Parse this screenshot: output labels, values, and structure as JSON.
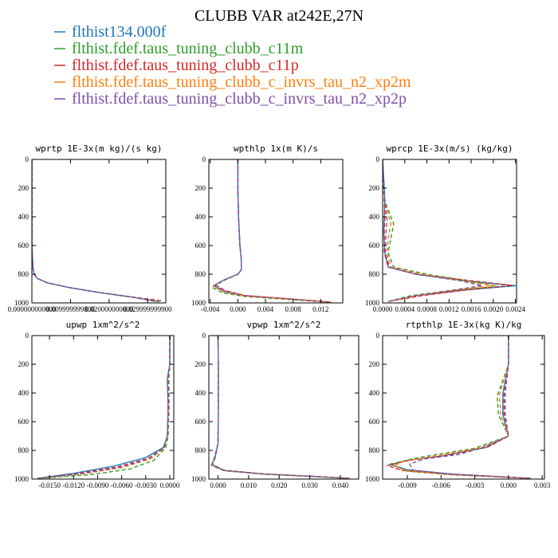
{
  "figure": {
    "title": "CLUBB VAR at242E,27N",
    "legend": [
      {
        "label": "flthist134.000f",
        "color": "#1f77b4"
      },
      {
        "label": "flthist.fdef.taus_tuning_clubb_c11m",
        "color": "#2ca02c"
      },
      {
        "label": "flthist.fdef.taus_tuning_clubb_c11p",
        "color": "#d62728"
      },
      {
        "label": "flthist.fdef.taus_tuning_clubb_c_invrs_tau_n2_xp2m",
        "color": "#ff7f0e"
      },
      {
        "label": "flthist.fdef.taus_tuning_clubb_c_invrs_tau_n2_xp2p",
        "color": "#7f4fa8"
      }
    ]
  },
  "chart_data": [
    {
      "type": "line",
      "title": "wprtp  1E-3x(m kg)/(s kg)",
      "xlim": [
        0,
        0.0347
      ],
      "ylim": [
        1000,
        0
      ],
      "xticks": [
        0,
        0.01,
        0.02,
        0.03
      ],
      "xtick_labels": [
        "0.000000000000",
        "0.009999999800",
        "0.020000000000",
        "0.029999999900"
      ],
      "yticks": [
        0,
        200,
        400,
        600,
        800,
        1000
      ],
      "ytick_labels": [
        "0",
        "200",
        "400",
        "600",
        "800",
        "1000"
      ],
      "series": [
        {
          "x": [
            0.0,
            0.0,
            0.0,
            0.0003,
            0.0006,
            0.0014,
            0.004,
            0.01,
            0.018,
            0.026,
            0.0327
          ],
          "y": [
            0,
            300,
            600,
            760,
            800,
            830,
            860,
            895,
            930,
            960,
            990
          ]
        },
        {
          "x": [
            0.0,
            0.0,
            0.0,
            0.0003,
            0.0006,
            0.0015,
            0.0042,
            0.0105,
            0.0185,
            0.0265,
            0.033
          ],
          "y": [
            0,
            300,
            600,
            760,
            800,
            832,
            862,
            897,
            932,
            962,
            992
          ]
        },
        {
          "x": [
            0.0,
            0.0,
            0.0,
            0.0003,
            0.0006,
            0.0013,
            0.0038,
            0.0098,
            0.0178,
            0.0258,
            0.0336
          ],
          "y": [
            0,
            300,
            600,
            760,
            800,
            828,
            858,
            893,
            928,
            958,
            985
          ]
        },
        {
          "x": [
            0.0,
            0.0,
            0.0,
            0.0003,
            0.0006,
            0.0015,
            0.0042,
            0.0102,
            0.0182,
            0.0262,
            0.0325
          ],
          "y": [
            0,
            300,
            600,
            760,
            800,
            831,
            861,
            896,
            931,
            961,
            993
          ]
        },
        {
          "x": [
            0.0,
            0.0,
            0.0,
            0.0003,
            0.0006,
            0.0014,
            0.0039,
            0.0099,
            0.0179,
            0.0259,
            0.0322
          ],
          "y": [
            0,
            300,
            600,
            760,
            800,
            829,
            859,
            894,
            929,
            959,
            988
          ]
        }
      ]
    },
    {
      "type": "line",
      "title": "wpthlp  1x(m K)/s",
      "xlim": [
        -0.0042,
        0.0152
      ],
      "ylim": [
        1000,
        0
      ],
      "xticks": [
        -0.004,
        0,
        0.004,
        0.008,
        0.012
      ],
      "xtick_labels": [
        "-0.004",
        "0.000",
        "0.004",
        "0.008",
        "0.012"
      ],
      "yticks": [
        0,
        200,
        400,
        600,
        800,
        1000
      ],
      "ytick_labels": [
        "0",
        "200",
        "400",
        "600",
        "800",
        "1000"
      ],
      "series": [
        {
          "x": [
            0.0,
            0.0,
            0.0001,
            0.0003,
            0.0005,
            0.0005,
            0.0,
            -0.002,
            -0.0035,
            -0.002,
            0.001,
            0.008,
            0.0135
          ],
          "y": [
            0,
            200,
            400,
            600,
            700,
            770,
            800,
            840,
            880,
            920,
            950,
            975,
            995
          ]
        },
        {
          "x": [
            0.0,
            0.0,
            0.0001,
            0.0003,
            0.0005,
            0.0005,
            0.0,
            -0.0023,
            -0.0038,
            -0.0022,
            0.001,
            0.008,
            0.0135
          ],
          "y": [
            0,
            200,
            400,
            600,
            700,
            770,
            800,
            845,
            890,
            930,
            955,
            978,
            996
          ]
        },
        {
          "x": [
            0.0,
            0.0,
            0.0001,
            0.0003,
            0.0005,
            0.0005,
            0.0,
            -0.0018,
            -0.0032,
            -0.0018,
            0.001,
            0.008,
            0.0135
          ],
          "y": [
            0,
            200,
            400,
            600,
            700,
            770,
            800,
            838,
            875,
            915,
            948,
            973,
            994
          ]
        },
        {
          "x": [
            0.0,
            0.0,
            0.0001,
            0.0003,
            0.0005,
            0.0005,
            0.0,
            -0.0021,
            -0.0036,
            -0.002,
            0.001,
            0.008,
            0.0135
          ],
          "y": [
            0,
            200,
            400,
            600,
            700,
            770,
            800,
            842,
            884,
            924,
            952,
            976,
            995
          ]
        },
        {
          "x": [
            0.0,
            0.0,
            0.0001,
            0.0003,
            0.0005,
            0.0005,
            0.0,
            -0.0019,
            -0.0034,
            -0.0019,
            0.001,
            0.008,
            0.0135
          ],
          "y": [
            0,
            200,
            400,
            600,
            700,
            770,
            800,
            840,
            878,
            918,
            950,
            974,
            994
          ]
        }
      ]
    },
    {
      "type": "line",
      "title": "wprcp  1E-3x(m/s) (kg/kg)",
      "xlim": [
        0,
        0.00242
      ],
      "ylim": [
        1000,
        0
      ],
      "xticks": [
        0,
        0.0004,
        0.0008,
        0.0012,
        0.0016,
        0.002,
        0.0024
      ],
      "xtick_labels": [
        "0.0000",
        "0.0004",
        "0.0008",
        "0.0012",
        "0.0016",
        "0.0020",
        "0.0024"
      ],
      "yticks": [
        0,
        200,
        400,
        600,
        800,
        1000
      ],
      "ytick_labels": [
        "0",
        "200",
        "400",
        "600",
        "800",
        "1000"
      ],
      "series": [
        {
          "x": [
            0.0,
            3e-05,
            4e-05,
            3e-05,
            2e-05,
            4e-05,
            0.0001,
            0.0006,
            0.0016,
            0.0024,
            0.0015,
            0.0006,
            0.0001
          ],
          "y": [
            0,
            200,
            300,
            400,
            500,
            650,
            750,
            800,
            850,
            880,
            910,
            950,
            990
          ]
        },
        {
          "x": [
            0.0,
            1e-05,
            5e-05,
            0.0002,
            0.00015,
            0.0001,
            0.0002,
            0.0008,
            0.0016,
            0.0021,
            0.0012,
            0.0005,
            0.0001
          ],
          "y": [
            0,
            200,
            300,
            450,
            550,
            650,
            750,
            800,
            850,
            885,
            915,
            950,
            990
          ]
        },
        {
          "x": [
            0.0,
            2e-05,
            3e-05,
            4e-05,
            3e-05,
            3e-05,
            0.0001,
            0.0006,
            0.0017,
            0.00235,
            0.0016,
            0.0007,
            0.0001
          ],
          "y": [
            0,
            200,
            300,
            400,
            500,
            650,
            750,
            800,
            850,
            878,
            905,
            950,
            990
          ]
        },
        {
          "x": [
            0.0,
            1e-05,
            4e-05,
            0.00015,
            0.0001,
            8e-05,
            0.00015,
            0.0007,
            0.0015,
            0.002,
            0.0013,
            0.0006,
            0.0001
          ],
          "y": [
            0,
            200,
            300,
            450,
            550,
            650,
            750,
            800,
            850,
            880,
            912,
            950,
            990
          ]
        },
        {
          "x": [
            0.0,
            2e-05,
            4e-05,
            8e-05,
            6e-05,
            5e-05,
            0.00012,
            0.0006,
            0.0014,
            0.0018,
            0.0012,
            0.0006,
            0.0001
          ],
          "y": [
            0,
            200,
            300,
            420,
            520,
            650,
            750,
            800,
            845,
            880,
            915,
            950,
            990
          ]
        }
      ]
    },
    {
      "type": "line",
      "title": "upwp  1xm^2/s^2",
      "xlim": [
        -0.0172,
        0.0005
      ],
      "ylim": [
        1000,
        0
      ],
      "xticks": [
        -0.015,
        -0.012,
        -0.009,
        -0.006,
        -0.003,
        0
      ],
      "xtick_labels": [
        "-0.0150",
        "-0.0120",
        "-0.0090",
        "-0.0060",
        "-0.0030",
        "0.0000"
      ],
      "yticks": [
        0,
        200,
        400,
        600,
        800,
        1000
      ],
      "ytick_labels": [
        "0",
        "200",
        "400",
        "600",
        "800",
        "1000"
      ],
      "series": [
        {
          "x": [
            0.0,
            0.0,
            -0.0003,
            -0.0002,
            -0.0003,
            -0.0008,
            -0.003,
            -0.007,
            -0.012,
            -0.0165
          ],
          "y": [
            0,
            200,
            300,
            500,
            700,
            780,
            850,
            910,
            960,
            995
          ]
        },
        {
          "x": [
            0.0,
            0.0,
            -0.0001,
            -0.0001,
            -0.0002,
            -0.0005,
            -0.002,
            -0.005,
            -0.01,
            -0.0165
          ],
          "y": [
            0,
            200,
            300,
            500,
            700,
            780,
            870,
            930,
            970,
            995
          ]
        },
        {
          "x": [
            0.0,
            0.0,
            -0.0002,
            -0.0002,
            -0.0003,
            -0.0007,
            -0.0027,
            -0.0065,
            -0.0115,
            -0.0165
          ],
          "y": [
            0,
            200,
            300,
            500,
            700,
            780,
            855,
            915,
            962,
            995
          ]
        },
        {
          "x": [
            0.0,
            0.0,
            -0.0001,
            -0.0001,
            -0.0003,
            -0.0006,
            -0.0024,
            -0.006,
            -0.011,
            -0.0165
          ],
          "y": [
            0,
            200,
            300,
            500,
            700,
            780,
            860,
            920,
            965,
            995
          ]
        },
        {
          "x": [
            0.0,
            0.0,
            -0.0002,
            -0.0001,
            -0.0003,
            -0.0007,
            -0.0026,
            -0.0062,
            -0.0112,
            -0.0165
          ],
          "y": [
            0,
            200,
            300,
            500,
            700,
            780,
            857,
            918,
            963,
            995
          ]
        }
      ]
    },
    {
      "type": "line",
      "title": "vpwp  1xm^2/s^2",
      "xlim": [
        -0.003,
        0.046
      ],
      "ylim": [
        1000,
        0
      ],
      "xticks": [
        0,
        0.01,
        0.02,
        0.03,
        0.04
      ],
      "xtick_labels": [
        "0.000",
        "0.010",
        "0.020",
        "0.030",
        "0.040"
      ],
      "yticks": [
        0,
        200,
        400,
        600,
        800,
        1000
      ],
      "ytick_labels": [
        "0",
        "200",
        "400",
        "600",
        "800",
        "1000"
      ],
      "series": [
        {
          "x": [
            0.0,
            0.0001,
            0.0001,
            0.0,
            -0.001,
            -0.002,
            0.002,
            0.015,
            0.03,
            0.043
          ],
          "y": [
            0,
            200,
            500,
            750,
            850,
            900,
            940,
            965,
            980,
            995
          ]
        },
        {
          "x": [
            0.0,
            0.0001,
            0.0001,
            0.0,
            -0.0012,
            -0.0022,
            0.002,
            0.015,
            0.03,
            0.043
          ],
          "y": [
            0,
            200,
            500,
            750,
            850,
            905,
            942,
            966,
            981,
            995
          ]
        },
        {
          "x": [
            0.0,
            0.0001,
            0.0001,
            0.0,
            -0.0009,
            -0.0019,
            0.002,
            0.015,
            0.03,
            0.043
          ],
          "y": [
            0,
            200,
            500,
            750,
            850,
            898,
            938,
            964,
            979,
            995
          ]
        },
        {
          "x": [
            0.0,
            0.0001,
            0.0001,
            0.0,
            -0.0011,
            -0.0021,
            0.002,
            0.015,
            0.03,
            0.043
          ],
          "y": [
            0,
            200,
            500,
            750,
            850,
            902,
            941,
            965,
            980,
            995
          ]
        },
        {
          "x": [
            0.0,
            0.0001,
            0.0001,
            0.0,
            -0.001,
            -0.002,
            0.002,
            0.015,
            0.03,
            0.043
          ],
          "y": [
            0,
            200,
            500,
            750,
            850,
            900,
            940,
            965,
            980,
            995
          ]
        }
      ]
    },
    {
      "type": "line",
      "title": "rtpthlp  1E-3x(kg K)/kg",
      "xlim": [
        -0.0112,
        0.0032
      ],
      "ylim": [
        1000,
        0
      ],
      "xticks": [
        -0.009,
        -0.006,
        -0.003,
        0,
        0.003
      ],
      "xtick_labels": [
        "-0.009",
        "-0.006",
        "-0.003",
        "0.000",
        "0.003"
      ],
      "yticks": [
        0,
        200,
        400,
        600,
        800,
        1000
      ],
      "ytick_labels": [
        "0",
        "200",
        "400",
        "600",
        "800",
        "1000"
      ],
      "series": [
        {
          "x": [
            0.0,
            0.0,
            -0.0005,
            -0.0005,
            0.0,
            -0.002,
            -0.006,
            -0.009,
            -0.0105,
            -0.009,
            -0.005,
            0.002
          ],
          "y": [
            0,
            200,
            400,
            550,
            700,
            780,
            840,
            870,
            900,
            935,
            965,
            995
          ]
        },
        {
          "x": [
            0.0,
            0.0,
            -0.001,
            -0.0009,
            0.0,
            -0.003,
            -0.008,
            -0.0105,
            -0.0098,
            -0.009,
            -0.005,
            0.002
          ],
          "y": [
            0,
            200,
            420,
            550,
            700,
            785,
            850,
            895,
            920,
            945,
            970,
            995
          ]
        },
        {
          "x": [
            0.0,
            0.0,
            -0.0003,
            -0.0003,
            0.0,
            -0.0018,
            -0.0055,
            -0.0085,
            -0.0108,
            -0.0095,
            -0.005,
            0.002
          ],
          "y": [
            0,
            200,
            400,
            550,
            700,
            775,
            835,
            865,
            905,
            940,
            968,
            995
          ]
        },
        {
          "x": [
            0.0,
            0.0,
            -0.0008,
            -0.0007,
            0.0,
            -0.0025,
            -0.007,
            -0.0095,
            -0.0102,
            -0.009,
            -0.005,
            0.002
          ],
          "y": [
            0,
            200,
            410,
            550,
            700,
            782,
            845,
            880,
            910,
            942,
            969,
            995
          ]
        },
        {
          "x": [
            0.0,
            0.0,
            -0.0004,
            -0.0004,
            0.0,
            -0.0022,
            -0.0045,
            -0.0075,
            -0.0088,
            -0.0085,
            -0.005,
            0.002
          ],
          "y": [
            0,
            200,
            400,
            550,
            700,
            778,
            830,
            860,
            895,
            938,
            967,
            995
          ]
        }
      ]
    }
  ]
}
